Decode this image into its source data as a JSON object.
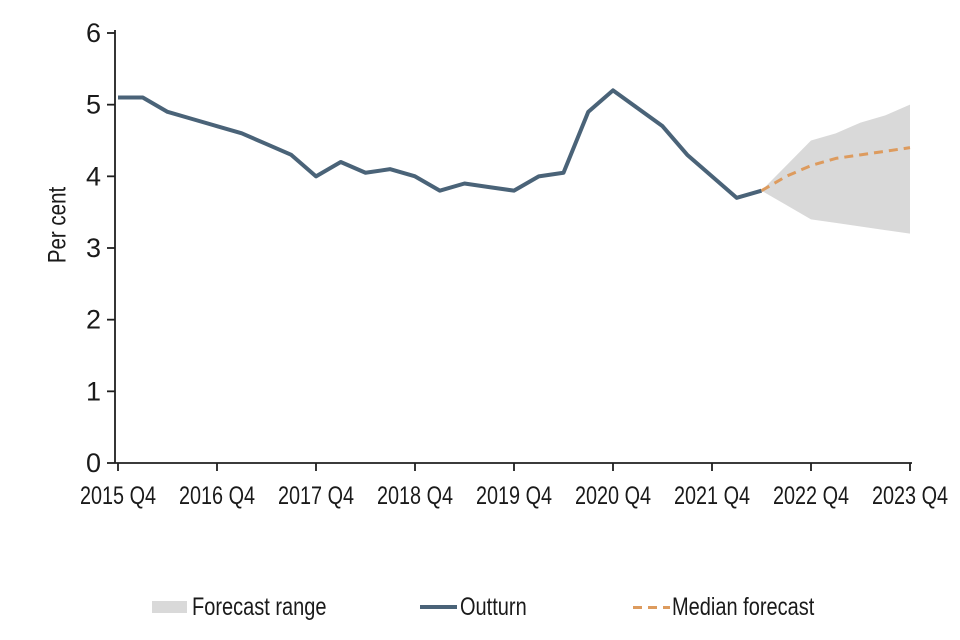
{
  "colors": {
    "outturn": "#4a6378",
    "median_forecast": "#dd9b5e",
    "forecast_range": "#d9d9d9",
    "axis": "#1f1f1f",
    "text": "#1a1a1a"
  },
  "chart_data": {
    "type": "line",
    "title": "",
    "xlabel": "",
    "ylabel": "Per cent",
    "ylim": [
      0,
      6
    ],
    "y_ticks": [
      0,
      1,
      2,
      3,
      4,
      5,
      6
    ],
    "x_tick_labels": [
      "2015 Q4",
      "2016 Q4",
      "2017 Q4",
      "2018 Q4",
      "2019 Q4",
      "2020 Q4",
      "2021 Q4",
      "2022 Q4",
      "2023 Q4"
    ],
    "x_frequency": "quarterly",
    "x_range": [
      "2015 Q4",
      "2023 Q4"
    ],
    "grid": false,
    "legend_position": "bottom",
    "series": [
      {
        "name": "Outturn",
        "kind": "line",
        "x_start": "2015 Q4",
        "values": [
          5.1,
          5.1,
          4.9,
          4.8,
          4.7,
          4.6,
          4.45,
          4.3,
          4.0,
          4.2,
          4.05,
          4.1,
          4.0,
          3.8,
          3.9,
          3.85,
          3.8,
          4.0,
          4.05,
          4.9,
          5.2,
          4.95,
          4.7,
          4.3,
          4.0,
          3.7,
          3.8
        ]
      },
      {
        "name": "Median forecast",
        "kind": "dashed-line",
        "x_start": "2022 Q2",
        "values": [
          3.8,
          4.0,
          4.15,
          4.25,
          4.3,
          4.35,
          4.4
        ]
      },
      {
        "name": "Forecast range",
        "kind": "band",
        "x_start": "2022 Q2",
        "upper": [
          3.8,
          4.15,
          4.5,
          4.6,
          4.75,
          4.85,
          5.0
        ],
        "lower": [
          3.8,
          3.6,
          3.4,
          3.35,
          3.3,
          3.25,
          3.2
        ]
      }
    ],
    "legend": [
      {
        "label": "Forecast range",
        "swatch": "band"
      },
      {
        "label": "Outturn",
        "swatch": "line"
      },
      {
        "label": "Median forecast",
        "swatch": "dashed-line"
      }
    ]
  }
}
